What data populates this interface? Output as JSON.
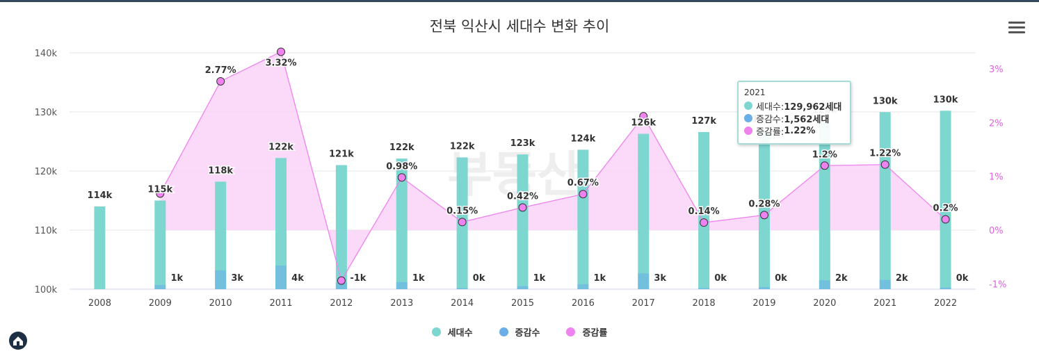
{
  "title": "전북 익산시 세대수 변화 추이",
  "colors": {
    "households": "#7dd6d0",
    "change": "#6aaee8",
    "rate": "#ee82ee",
    "rate_fill": "#f9d3f7"
  },
  "watermark": "부동산",
  "chart_data": {
    "type": "bar",
    "categories": [
      "2008",
      "2009",
      "2010",
      "2011",
      "2012",
      "2013",
      "2014",
      "2015",
      "2016",
      "2017",
      "2018",
      "2019",
      "2020",
      "2021",
      "2022"
    ],
    "series": [
      {
        "name": "세대수",
        "axis": "left",
        "values": [
          114000,
          115000,
          118200,
          122200,
          121000,
          122100,
          122300,
          122800,
          123600,
          126300,
          126600,
          126900,
          128400,
          129962,
          130200
        ],
        "labels": [
          "114k",
          "115k",
          "118k",
          "122k",
          "121k",
          "122k",
          "122k",
          "123k",
          "124k",
          "126k",
          "127k",
          "127k",
          "128k",
          "130k",
          "130k"
        ]
      },
      {
        "name": "증감수",
        "axis": "left",
        "values": [
          null,
          710,
          3200,
          4000,
          -1100,
          1180,
          180,
          510,
          830,
          2670,
          170,
          350,
          1500,
          1562,
          260
        ],
        "labels": [
          "",
          "1k",
          "3k",
          "4k",
          "-1k",
          "1k",
          "0k",
          "1k",
          "1k",
          "3k",
          "0k",
          "0k",
          "2k",
          "2k",
          "0k"
        ]
      },
      {
        "name": "증감률",
        "axis": "right",
        "type": "area",
        "values": [
          null,
          0.68,
          2.77,
          3.32,
          -0.94,
          0.98,
          0.15,
          0.42,
          0.67,
          2.12,
          0.14,
          0.28,
          1.2,
          1.22,
          0.2
        ],
        "labels": [
          "",
          "",
          "2.77%",
          "3.32%",
          "",
          "0.98%",
          "0.15%",
          "0.42%",
          "0.67%",
          "",
          "0.14%",
          "0.28%",
          "1.2%",
          "1.22%",
          "0.2%"
        ]
      }
    ],
    "y_left": {
      "ticks": [
        100000,
        110000,
        120000,
        130000,
        140000
      ],
      "tick_labels": [
        "100k",
        "110k",
        "120k",
        "130k",
        "140k"
      ],
      "ylim": [
        100000,
        140000
      ]
    },
    "y_right": {
      "ticks": [
        -1,
        0,
        1,
        2,
        3
      ],
      "tick_labels": [
        "-1%",
        "0%",
        "1%",
        "2%",
        "3%"
      ],
      "ylim": [
        -1.1,
        3.3
      ]
    },
    "legend": [
      {
        "label": "세대수"
      },
      {
        "label": "증감수"
      },
      {
        "label": "증감률"
      }
    ],
    "legend_position": "bottom",
    "grid": true
  },
  "tooltip": {
    "year": "2021",
    "rows": [
      {
        "label": "세대수: ",
        "value": "129,962세대"
      },
      {
        "label": "증감수: ",
        "value": "1,562세대"
      },
      {
        "label": "증감률: ",
        "value": "1.22%"
      }
    ]
  }
}
